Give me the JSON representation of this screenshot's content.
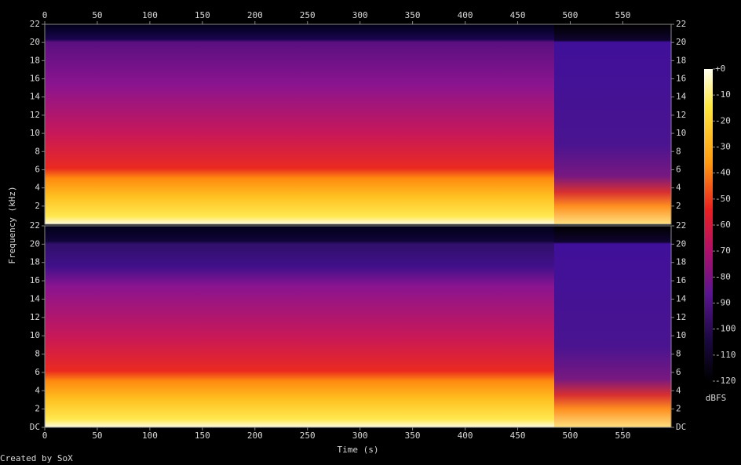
{
  "chart_data": [
    {
      "type": "spectrogram",
      "y_label": "Frequency (kHz)",
      "xlim": [
        0,
        596
      ],
      "xticks": [
        0,
        50,
        100,
        150,
        200,
        250,
        300,
        350,
        400,
        450,
        500,
        550
      ],
      "ylim": [
        0,
        22
      ],
      "yticks": [
        2,
        4,
        6,
        8,
        10,
        12,
        14,
        16,
        18,
        20,
        22
      ]
    },
    {
      "type": "spectrogram",
      "x_label": "Time (s)",
      "xlim": [
        0,
        596
      ],
      "xticks": [
        0,
        50,
        100,
        150,
        200,
        250,
        300,
        350,
        400,
        450,
        500,
        550
      ],
      "ylim": [
        0,
        22
      ],
      "yticks": [
        {
          "value": 0,
          "label": "DC"
        },
        2,
        4,
        6,
        8,
        10,
        12,
        14,
        16,
        18,
        20,
        22
      ]
    },
    {
      "type": "colorbar",
      "label": "dBFS",
      "clim": [
        -120,
        0
      ],
      "ticks": [
        {
          "value": 0,
          "label": "+0"
        },
        -10,
        -20,
        -30,
        -40,
        -50,
        -60,
        -70,
        -80,
        -90,
        -100,
        -110,
        -120
      ]
    }
  ],
  "credit": "Created by SoX"
}
